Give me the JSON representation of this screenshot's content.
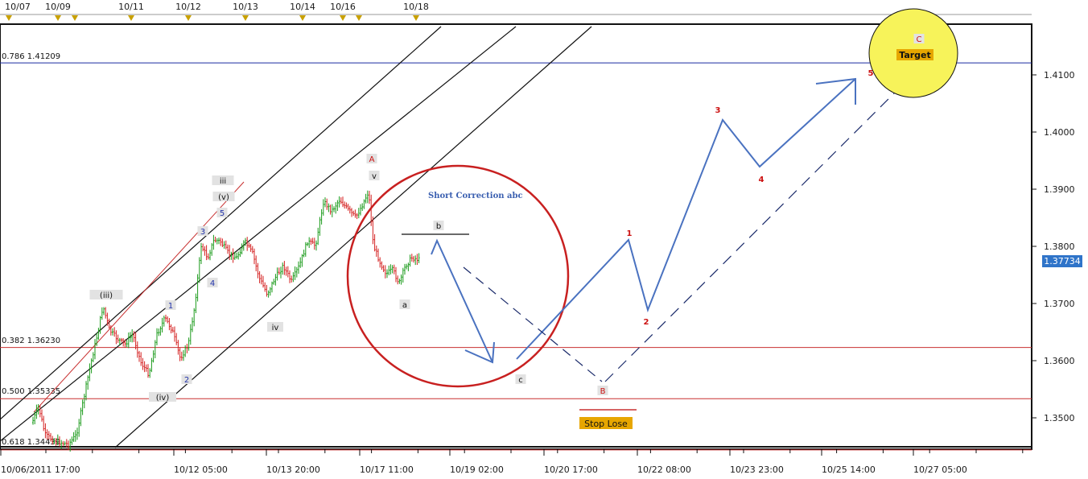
{
  "chart_data": {
    "type": "candlestick",
    "title": "",
    "top_axis": {
      "labels": [
        "10/07",
        "10/09",
        "10/11",
        "10/12",
        "10/13",
        "10/14",
        "10/16",
        "10/18"
      ]
    },
    "x_axis": {
      "labels": [
        "10/06/2011 17:00",
        "10/12 05:00",
        "10/13 20:00",
        "10/17 11:00",
        "10/19 02:00",
        "10/20 17:00",
        "10/22 08:00",
        "10/23 23:00",
        "10/25 14:00",
        "10/27 05:00"
      ]
    },
    "y_axis": {
      "ticks": [
        "1.3500",
        "1.3600",
        "1.3700",
        "1.3800",
        "1.3900",
        "1.4000",
        "1.4100"
      ],
      "ylim": [
        1.344,
        1.4185
      ],
      "current_price": "1.37734"
    },
    "fib_levels": [
      {
        "label": "0.786 1.41209",
        "value": 1.41209
      },
      {
        "label": "0.382 1.36230",
        "value": 1.3623
      },
      {
        "label": "0.500 1.35335",
        "value": 1.35335
      },
      {
        "label": "0.618 1.34439",
        "value": 1.34439
      }
    ],
    "wave_labels": {
      "iii_minor": "(iii)",
      "iv_minor": "(iv)",
      "v_minor": "(v)",
      "iii": "iii",
      "iv": "iv",
      "v": "v",
      "n1": "1",
      "n2": "2",
      "n3": "3",
      "n4": "4",
      "n5": "5",
      "a": "a",
      "b": "b",
      "c": "c",
      "A": "A",
      "B": "B",
      "C": "C",
      "proj_1": "1",
      "proj_2": "2",
      "proj_3": "3",
      "proj_4": "4",
      "proj_5": "5"
    },
    "annotations": {
      "short_correction": "Short Correction abc",
      "stop_lose": "Stop Lose",
      "target": "Target"
    }
  },
  "colors": {
    "background": "#ffffff",
    "candle_up": "#1a9a1a",
    "candle_down": "#d42020",
    "fib_red": "#c83030",
    "fib_blue": "#1a2aa0",
    "channel": "#111111",
    "projection": "#4a72c0",
    "circle": "#c82020",
    "target_fill": "#f7f35a",
    "label_box": "#e2e2e2",
    "gold_box": "#e7a600",
    "price_box": "#2f74c9"
  }
}
